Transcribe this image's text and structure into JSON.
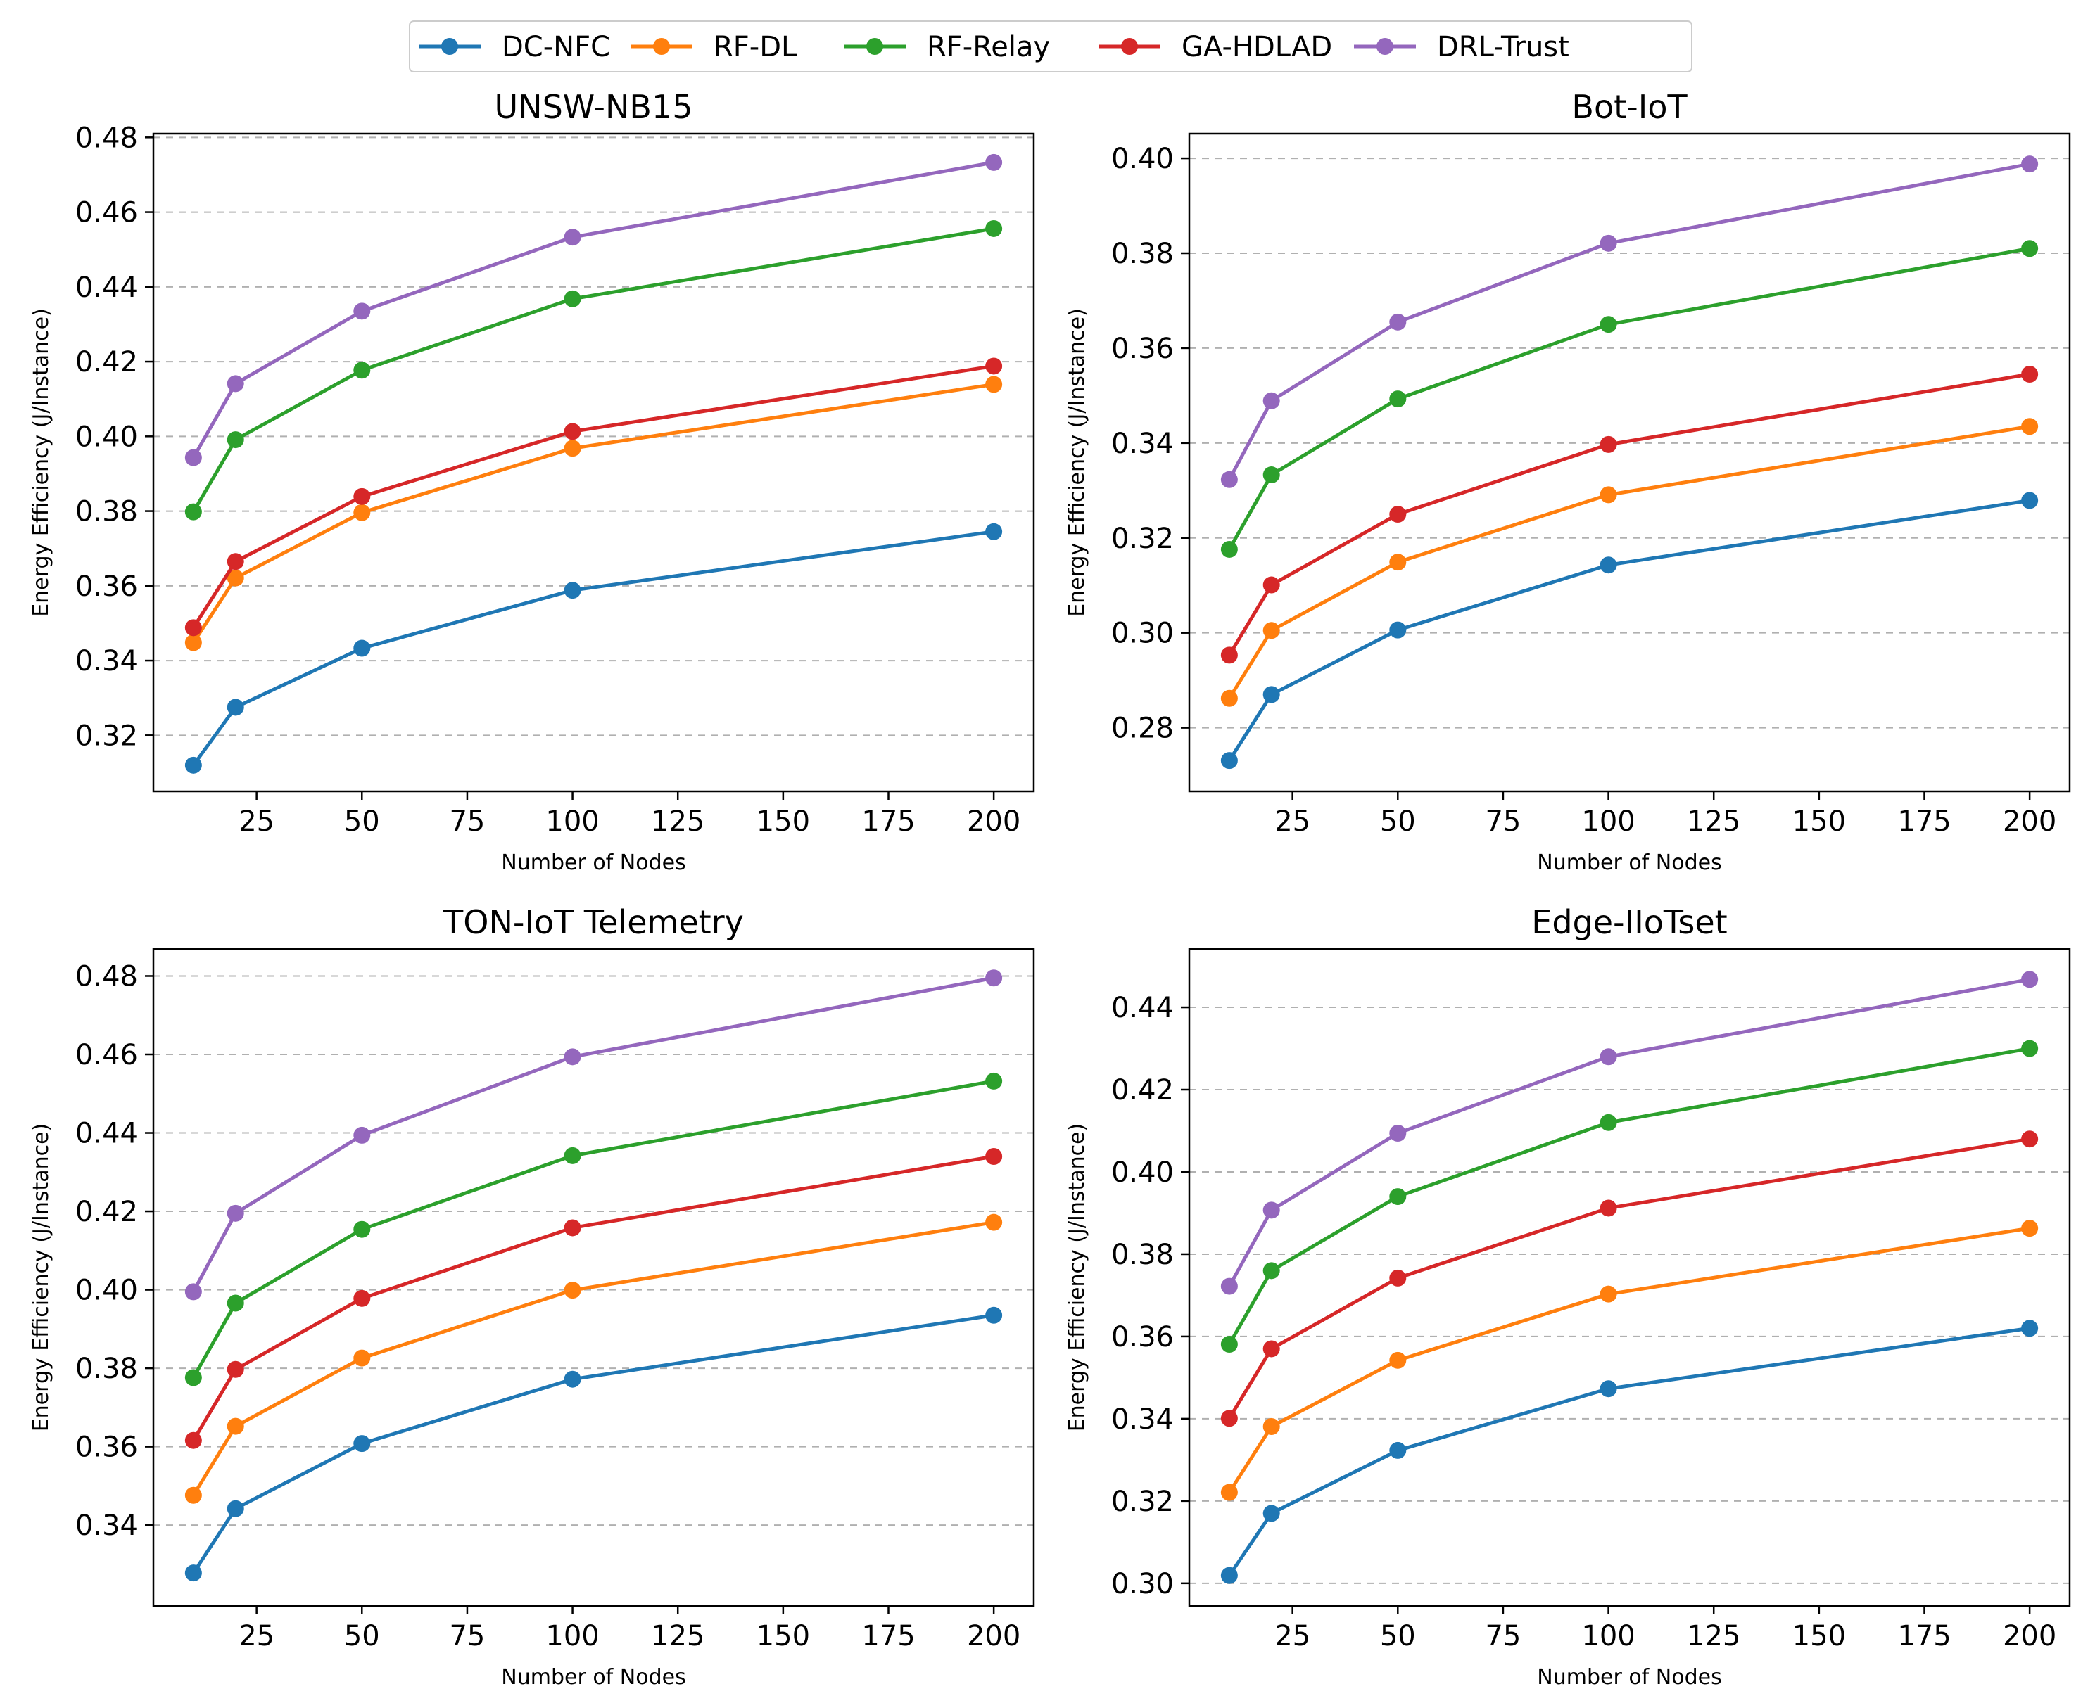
{
  "colors": {
    "DC-NFC": "#1f77b4",
    "RF-DL": "#ff7f0e",
    "RF-Relay": "#2ca02c",
    "GA-HDLAD": "#d62728",
    "DRL-Trust": "#9467bd"
  },
  "legend": [
    "DC-NFC",
    "RF-DL",
    "RF-Relay",
    "GA-HDLAD",
    "DRL-Trust"
  ],
  "chart_data": [
    {
      "type": "line",
      "title": "UNSW-NB15",
      "xlabel": "Number of Nodes",
      "ylabel": "Energy Efficiency (J/Instance)",
      "x": [
        10,
        20,
        50,
        100,
        200
      ],
      "xlim": [
        0.5,
        209.5
      ],
      "ylim": [
        0.305,
        0.481
      ],
      "xticks": [
        25,
        50,
        75,
        100,
        125,
        150,
        175,
        200
      ],
      "yticks": [
        0.32,
        0.34,
        0.36,
        0.38,
        0.4,
        0.42,
        0.44,
        0.46,
        0.48
      ],
      "grid": "y dashed",
      "series": [
        {
          "name": "DC-NFC",
          "values": [
            0.312,
            0.3275,
            0.3433,
            0.3588,
            0.3745
          ]
        },
        {
          "name": "RF-DL",
          "values": [
            0.3448,
            0.3621,
            0.3796,
            0.3968,
            0.4139
          ]
        },
        {
          "name": "RF-Relay",
          "values": [
            0.3798,
            0.3991,
            0.4177,
            0.4368,
            0.4556
          ]
        },
        {
          "name": "GA-HDLAD",
          "values": [
            0.3488,
            0.3665,
            0.3839,
            0.4013,
            0.4188
          ]
        },
        {
          "name": "DRL-Trust",
          "values": [
            0.3943,
            0.4141,
            0.4335,
            0.4533,
            0.4733
          ]
        }
      ]
    },
    {
      "type": "line",
      "title": "Bot-IoT",
      "xlabel": "Number of Nodes",
      "ylabel": "Energy Efficiency (J/Instance)",
      "x": [
        10,
        20,
        50,
        100,
        200
      ],
      "xlim": [
        0.5,
        209.5
      ],
      "ylim": [
        0.2666,
        0.4052
      ],
      "xticks": [
        25,
        50,
        75,
        100,
        125,
        150,
        175,
        200
      ],
      "yticks": [
        0.28,
        0.3,
        0.32,
        0.34,
        0.36,
        0.38,
        0.4
      ],
      "grid": "y dashed",
      "series": [
        {
          "name": "DC-NFC",
          "values": [
            0.2731,
            0.287,
            0.3006,
            0.3143,
            0.3279
          ]
        },
        {
          "name": "RF-DL",
          "values": [
            0.2862,
            0.3005,
            0.3149,
            0.3291,
            0.3435
          ]
        },
        {
          "name": "RF-Relay",
          "values": [
            0.3176,
            0.3333,
            0.3493,
            0.365,
            0.381
          ]
        },
        {
          "name": "GA-HDLAD",
          "values": [
            0.2953,
            0.3101,
            0.325,
            0.3397,
            0.3545
          ]
        },
        {
          "name": "DRL-Trust",
          "values": [
            0.3323,
            0.3489,
            0.3655,
            0.3821,
            0.3988
          ]
        }
      ]
    },
    {
      "type": "line",
      "title": "TON-IoT Telemetry",
      "xlabel": "Number of Nodes",
      "ylabel": "Energy Efficiency (J/Instance)",
      "x": [
        10,
        20,
        50,
        100,
        200
      ],
      "xlim": [
        0.5,
        209.5
      ],
      "ylim": [
        0.3194,
        0.4869
      ],
      "xticks": [
        25,
        50,
        75,
        100,
        125,
        150,
        175,
        200
      ],
      "yticks": [
        0.34,
        0.36,
        0.38,
        0.4,
        0.42,
        0.44,
        0.46,
        0.48
      ],
      "grid": "y dashed",
      "series": [
        {
          "name": "DC-NFC",
          "values": [
            0.3278,
            0.3442,
            0.3608,
            0.3772,
            0.3935
          ]
        },
        {
          "name": "RF-DL",
          "values": [
            0.3476,
            0.3652,
            0.3826,
            0.3999,
            0.4172
          ]
        },
        {
          "name": "RF-Relay",
          "values": [
            0.3776,
            0.3966,
            0.4154,
            0.4342,
            0.4532
          ]
        },
        {
          "name": "GA-HDLAD",
          "values": [
            0.3616,
            0.3797,
            0.3978,
            0.4158,
            0.434
          ]
        },
        {
          "name": "DRL-Trust",
          "values": [
            0.3995,
            0.4195,
            0.4394,
            0.4594,
            0.4795
          ]
        }
      ]
    },
    {
      "type": "line",
      "title": "Edge-IIoTset",
      "xlabel": "Number of Nodes",
      "ylabel": "Energy Efficiency (J/Instance)",
      "x": [
        10,
        20,
        50,
        100,
        200
      ],
      "xlim": [
        0.5,
        209.5
      ],
      "ylim": [
        0.2945,
        0.4542
      ],
      "xticks": [
        25,
        50,
        75,
        100,
        125,
        150,
        175,
        200
      ],
      "yticks": [
        0.3,
        0.32,
        0.34,
        0.36,
        0.38,
        0.4,
        0.42,
        0.44
      ],
      "grid": "y dashed",
      "series": [
        {
          "name": "DC-NFC",
          "values": [
            0.3019,
            0.317,
            0.3323,
            0.3473,
            0.362
          ]
        },
        {
          "name": "RF-DL",
          "values": [
            0.3221,
            0.3381,
            0.3542,
            0.3703,
            0.3863
          ]
        },
        {
          "name": "RF-Relay",
          "values": [
            0.3581,
            0.376,
            0.394,
            0.412,
            0.43
          ]
        },
        {
          "name": "GA-HDLAD",
          "values": [
            0.3401,
            0.357,
            0.3742,
            0.3912,
            0.408
          ]
        },
        {
          "name": "DRL-Trust",
          "values": [
            0.3722,
            0.3907,
            0.4094,
            0.428,
            0.4468
          ]
        }
      ]
    }
  ]
}
